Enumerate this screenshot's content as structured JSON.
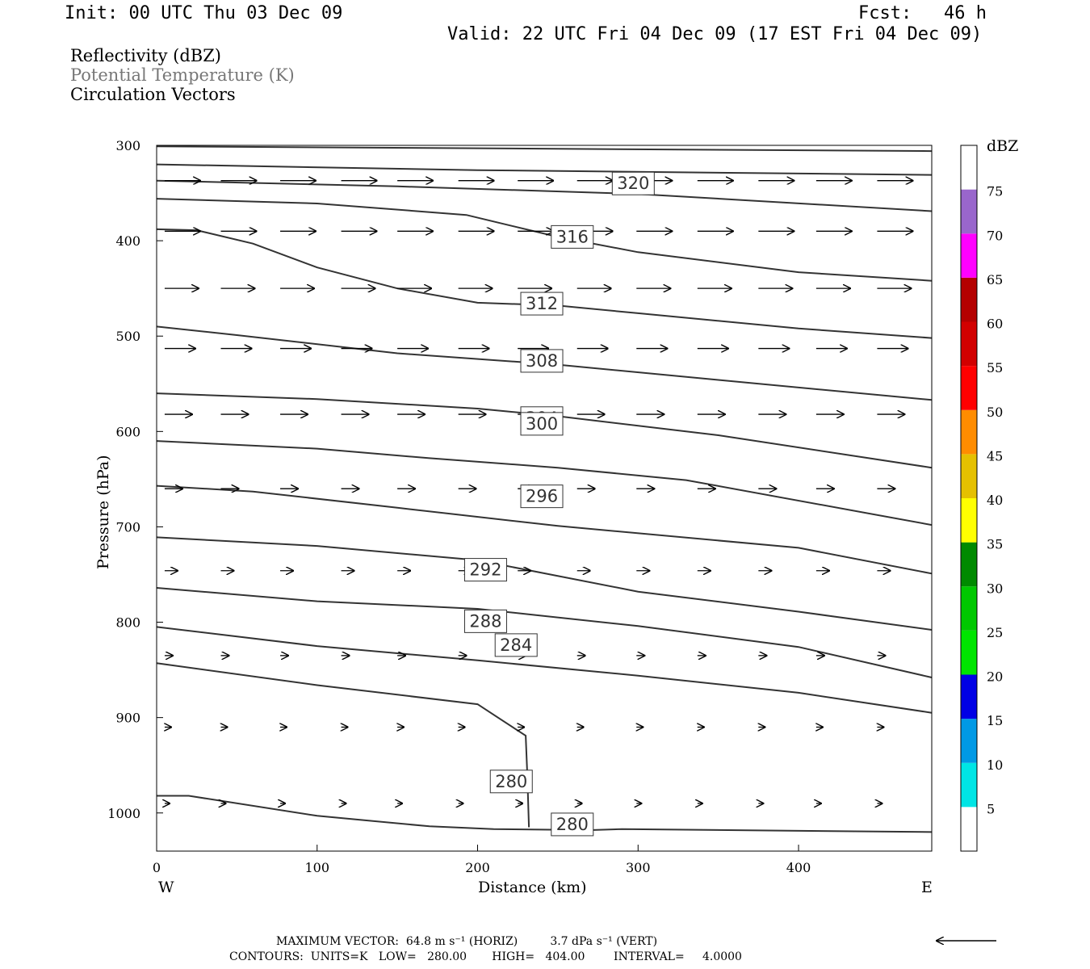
{
  "header": {
    "init": "Init: 00 UTC Thu 03 Dec 09",
    "fcst": "Fcst:   46 h",
    "valid": "Valid: 22 UTC Fri 04 Dec 09 (17 EST Fri 04 Dec 09)"
  },
  "fields": {
    "reflectivity": "Reflectivity (dBZ)",
    "potential_temperature": "Potential Temperature (K)",
    "circulation": "Circulation Vectors"
  },
  "colors": {
    "theta_text": "#777777",
    "contour": "#333333",
    "frame": "#000000"
  },
  "chart_data": {
    "type": "cross-section",
    "xlabel": "Distance (km)",
    "ylabel": "Pressure (hPa)",
    "x_left_label": "W",
    "x_right_label": "E",
    "xlim": [
      0,
      483
    ],
    "ylim": [
      300,
      1040
    ],
    "y_inverted": true,
    "x_ticks": [
      0,
      100,
      200,
      300,
      400
    ],
    "y_ticks": [
      300,
      400,
      500,
      600,
      700,
      800,
      900,
      1000
    ],
    "contours": [
      {
        "value": null,
        "label": "",
        "points": [
          [
            0,
            301
          ],
          [
            483,
            306
          ]
        ]
      },
      {
        "value": null,
        "label": "",
        "points": [
          [
            0,
            320
          ],
          [
            200,
            326
          ],
          [
            483,
            331
          ]
        ]
      },
      {
        "value": 320,
        "label": "320",
        "points": [
          [
            0,
            337
          ],
          [
            150,
            343
          ],
          [
            300,
            351
          ],
          [
            483,
            369
          ]
        ],
        "label_at": [
          297,
          340
        ]
      },
      {
        "value": null,
        "label": "",
        "points": [
          [
            0,
            356
          ],
          [
            100,
            361
          ],
          [
            193,
            373
          ],
          [
            250,
            396
          ],
          [
            300,
            412
          ],
          [
            400,
            433
          ],
          [
            483,
            442
          ]
        ]
      },
      {
        "value": 316,
        "label": "316",
        "points": [
          [
            0,
            388
          ],
          [
            25,
            389
          ],
          [
            60,
            403
          ],
          [
            100,
            428
          ],
          [
            150,
            450
          ],
          [
            200,
            465
          ],
          [
            250,
            468
          ],
          [
            300,
            476
          ],
          [
            400,
            492
          ],
          [
            483,
            502
          ]
        ],
        "label_at": [
          259,
          396
        ]
      },
      {
        "value": 312,
        "label": "312",
        "points": [
          [
            0,
            490
          ],
          [
            50,
            499
          ],
          [
            150,
            518
          ],
          [
            250,
            530
          ],
          [
            350,
            546
          ],
          [
            483,
            567
          ]
        ],
        "label_at": [
          240,
          466
        ]
      },
      {
        "value": 308,
        "label": "308",
        "points": [
          [
            0,
            560
          ],
          [
            100,
            566
          ],
          [
            200,
            576
          ],
          [
            250,
            584
          ],
          [
            350,
            604
          ],
          [
            483,
            638
          ]
        ],
        "label_at": [
          240,
          526
        ]
      },
      {
        "value": 304,
        "label": "304",
        "points": [
          [
            0,
            610
          ],
          [
            100,
            618
          ],
          [
            170,
            628
          ],
          [
            250,
            638
          ],
          [
            330,
            651
          ],
          [
            483,
            698
          ]
        ],
        "label_at": [
          240,
          586
        ]
      },
      {
        "value": 300,
        "label": "300",
        "points": [
          [
            0,
            657
          ],
          [
            60,
            663
          ],
          [
            150,
            680
          ],
          [
            250,
            699
          ],
          [
            400,
            722
          ],
          [
            483,
            749
          ]
        ],
        "label_at": [
          240,
          592
        ]
      },
      {
        "value": 296,
        "label": "296",
        "points": [
          [
            0,
            711
          ],
          [
            100,
            720
          ],
          [
            200,
            735
          ],
          [
            300,
            768
          ],
          [
            400,
            789
          ],
          [
            483,
            808
          ]
        ],
        "label_at": [
          240,
          668
        ]
      },
      {
        "value": 292,
        "label": "292",
        "points": [
          [
            0,
            764
          ],
          [
            100,
            778
          ],
          [
            200,
            786
          ],
          [
            300,
            804
          ],
          [
            400,
            826
          ],
          [
            483,
            858
          ]
        ],
        "label_at": [
          205,
          745
        ]
      },
      {
        "value": 288,
        "label": "288",
        "points": [
          [
            0,
            805
          ],
          [
            100,
            825
          ],
          [
            200,
            840
          ],
          [
            300,
            856
          ],
          [
            400,
            874
          ],
          [
            483,
            895
          ]
        ],
        "label_at": [
          205,
          799
        ]
      },
      {
        "value": 284,
        "label": "284",
        "points": [
          [
            0,
            843
          ],
          [
            100,
            866
          ],
          [
            200,
            886
          ],
          [
            230,
            919
          ],
          [
            231,
            960
          ],
          [
            232,
            1015
          ]
        ],
        "label_at": [
          224,
          824
        ]
      },
      {
        "value": 280,
        "label": "280",
        "points": [
          [
            0,
            982
          ],
          [
            20,
            982
          ],
          [
            100,
            1003
          ],
          [
            170,
            1014
          ],
          [
            210,
            1017
          ],
          [
            270,
            1018
          ],
          [
            290,
            1017
          ],
          [
            483,
            1020
          ]
        ],
        "label_at": [
          221,
          967
        ]
      }
    ],
    "extra_labels": [
      {
        "label": "280",
        "at": [
          259,
          1012
        ]
      }
    ],
    "vectors": {
      "x": [
        5,
        40,
        77,
        115,
        150,
        188,
        225,
        262,
        299,
        337,
        375,
        411,
        449
      ],
      "rows": [
        {
          "p": 337,
          "u": [
            22,
            22,
            22,
            22,
            22,
            22,
            22,
            22,
            22,
            22,
            22,
            22,
            22
          ],
          "w": [
            0,
            0,
            0,
            0,
            0,
            0,
            0,
            0,
            0,
            0,
            0,
            0,
            0
          ]
        },
        {
          "p": 390,
          "u": [
            22,
            22,
            22,
            22,
            22,
            22,
            22,
            22,
            22,
            22,
            22,
            22,
            22
          ],
          "w": [
            0,
            0,
            0,
            0,
            0,
            0,
            0,
            0,
            0,
            0,
            0,
            0,
            0
          ]
        },
        {
          "p": 450,
          "u": [
            21,
            21,
            21,
            21,
            21,
            21,
            21,
            21,
            21,
            21,
            21,
            21,
            21
          ],
          "w": [
            0,
            0,
            0,
            0,
            0,
            0,
            0,
            0,
            0,
            0,
            0,
            0,
            0
          ]
        },
        {
          "p": 513,
          "u": [
            19,
            19,
            19,
            19,
            19,
            19,
            19,
            19,
            19,
            19,
            19,
            19,
            19
          ],
          "w": [
            0,
            0,
            0,
            0,
            0,
            0,
            0,
            0,
            0,
            0,
            0,
            0,
            0
          ]
        },
        {
          "p": 582,
          "u": [
            17,
            17,
            17,
            17,
            17,
            17,
            17,
            17,
            17,
            17,
            17,
            17,
            17
          ],
          "w": [
            0,
            0,
            0,
            0,
            0,
            0,
            0,
            0,
            0,
            0,
            0,
            0,
            0
          ]
        },
        {
          "p": 660,
          "u": [
            11,
            11,
            11,
            11,
            11,
            11,
            11,
            11,
            11,
            11,
            11,
            11,
            11
          ],
          "w": [
            0,
            0,
            0,
            0,
            0,
            0,
            0,
            0,
            0,
            0,
            0,
            0,
            0
          ]
        },
        {
          "p": 746,
          "u": [
            8,
            8,
            8,
            8,
            8,
            8,
            8,
            8,
            8,
            8,
            8,
            8,
            8
          ],
          "w": [
            0,
            0,
            0,
            0,
            0,
            0,
            0,
            0,
            0,
            0,
            0,
            0,
            0
          ]
        },
        {
          "p": 835,
          "u": [
            5,
            5,
            5,
            5,
            5,
            5,
            5,
            5,
            5,
            5,
            5,
            5,
            5
          ],
          "w": [
            0,
            0,
            0,
            0,
            0,
            0,
            0,
            0,
            0,
            0,
            0,
            0,
            0
          ]
        },
        {
          "p": 910,
          "u": [
            4,
            4,
            4,
            4,
            4,
            4,
            4,
            4,
            4,
            4,
            4,
            4,
            4
          ],
          "w": [
            0,
            0,
            0,
            0,
            0,
            0,
            0,
            0,
            0,
            0,
            0,
            0,
            0
          ]
        },
        {
          "p": 990,
          "u": [
            3,
            3,
            3,
            3,
            3,
            3,
            3,
            3,
            3,
            3,
            3,
            3,
            3
          ],
          "w": [
            0,
            0,
            0,
            0,
            0,
            0,
            0,
            0,
            0,
            0,
            0,
            0,
            0
          ]
        }
      ]
    }
  },
  "colorbar": {
    "title": "dBZ",
    "levels": [
      "5",
      "10",
      "15",
      "20",
      "25",
      "30",
      "35",
      "40",
      "45",
      "50",
      "55",
      "60",
      "65",
      "70",
      "75"
    ],
    "colors": [
      "#ffffff",
      "#00e5e5",
      "#0099e5",
      "#0000e5",
      "#00e500",
      "#00c800",
      "#008a00",
      "#ffff00",
      "#e5c000",
      "#ff8c00",
      "#ff0000",
      "#d20000",
      "#b40000",
      "#ff00ff",
      "#9966cc",
      "#ffffff"
    ]
  },
  "footer": {
    "line1": "MAXIMUM VECTOR:  64.8 m s⁻¹ (HORIZ)         3.7 dPa s⁻¹ (VERT)",
    "line2": "CONTOURS:  UNITS=K   LOW=   280.00       HIGH=   404.00        INTERVAL=     4.0000"
  }
}
